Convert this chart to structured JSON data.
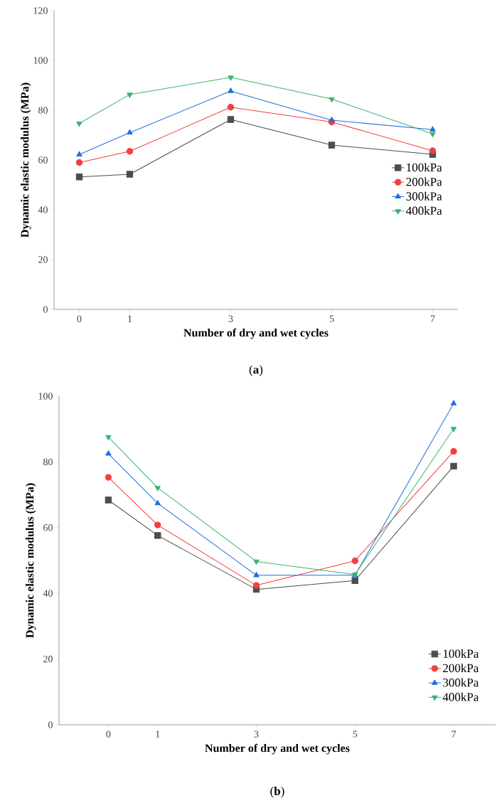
{
  "chart_data": [
    {
      "type": "line",
      "xlabel": "Number of dry and wet cycles",
      "ylabel": "Dynamic elastic modulus (MPa)",
      "annotations": [
        "(**a**)"
      ],
      "x": [
        0,
        1,
        3,
        5,
        7
      ],
      "xlim": [
        -0.5,
        7.5
      ],
      "xticks": [
        0,
        1,
        3,
        5,
        7
      ],
      "ylim": [
        0,
        120
      ],
      "yticks": [
        0,
        20,
        40,
        60,
        80,
        100,
        120
      ],
      "legend": "right",
      "series": [
        {
          "name": "100kPa",
          "color": "#4d4d4d",
          "marker": "square",
          "values": [
            53.2,
            54.3,
            76.3,
            66,
            62.3
          ]
        },
        {
          "name": "200kPa",
          "color": "#f04040",
          "marker": "circle",
          "values": [
            59,
            63.5,
            81.2,
            75.3,
            63.7
          ]
        },
        {
          "name": "300kPa",
          "color": "#1f6fdf",
          "marker": "triangle",
          "values": [
            62.2,
            71,
            87.7,
            76,
            72.2
          ]
        },
        {
          "name": "400kPa",
          "color": "#3cb371",
          "marker": "triangle-down",
          "values": [
            74.7,
            86.3,
            93.2,
            84.5,
            70.5
          ]
        }
      ]
    },
    {
      "type": "line",
      "xlabel": "Number of dry and wet cycles",
      "ylabel": "Dynamic elastic modulus (MPa)",
      "annotations": [
        "(**b**)"
      ],
      "x": [
        0,
        1,
        3,
        5,
        7
      ],
      "xlim": [
        -1,
        7.85
      ],
      "xticks": [
        0,
        1,
        3,
        5,
        7
      ],
      "ylim": [
        0,
        100
      ],
      "yticks": [
        0,
        20,
        40,
        60,
        80,
        100
      ],
      "legend": "bottom right",
      "series": [
        {
          "name": "100kPa",
          "color": "#4d4d4d",
          "marker": "square",
          "values": [
            68.4,
            57.6,
            41.2,
            43.9,
            78.7
          ]
        },
        {
          "name": "200kPa",
          "color": "#f04040",
          "marker": "circle",
          "values": [
            75.3,
            60.8,
            42.4,
            49.9,
            83.2
          ]
        },
        {
          "name": "300kPa",
          "color": "#1f6fdf",
          "marker": "triangle",
          "values": [
            82.5,
            67.4,
            45.5,
            45.5,
            97.8
          ]
        },
        {
          "name": "400kPa",
          "color": "#3cb371",
          "marker": "triangle-down",
          "values": [
            87.6,
            72.1,
            49.7,
            45.7,
            90.1
          ]
        }
      ]
    }
  ]
}
